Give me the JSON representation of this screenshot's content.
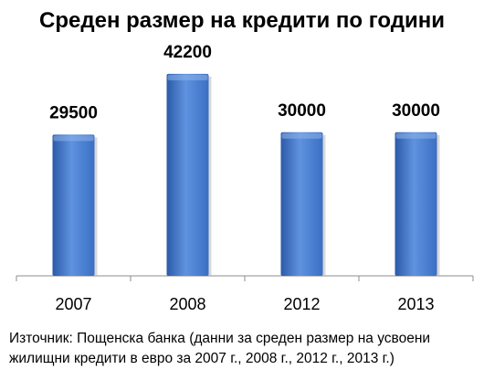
{
  "chart_data": {
    "type": "bar",
    "title": "Среден размер на кредити по години",
    "categories": [
      "2007",
      "2008",
      "2012",
      "2013"
    ],
    "values": [
      29500,
      42200,
      30000,
      30000
    ],
    "data_labels": [
      "29500",
      "42200",
      "30000",
      "30000"
    ],
    "xlabel": "",
    "ylabel": "",
    "ylim": [
      0,
      50000
    ],
    "grid": false,
    "legend": "none",
    "bar_color": "#3a6fc4",
    "bar_color_light": "#5f93df",
    "bar_color_dark": "#2b5aa8"
  },
  "source": {
    "line1": "Източник: Пощенска банка (данни  за среден размер на усвоени",
    "line2": "жилищни кредити в евро за 2007 г., 2008 г., 2012 г., 2013 г.)"
  }
}
